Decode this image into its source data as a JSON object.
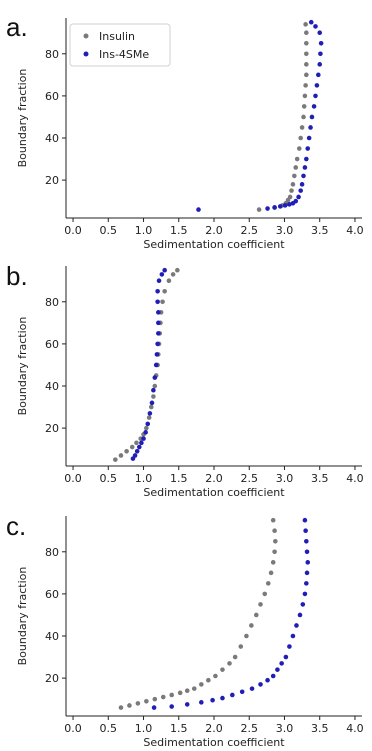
{
  "colors": {
    "insulin": "#7a7a7a",
    "ins_4sme": "#1f1fb8",
    "axis": "#222222"
  },
  "chart_data": [
    {
      "type": "scatter",
      "panel_label": "a.",
      "xlabel": "Sedimentation coefficient",
      "ylabel": "Boundary fraction",
      "xlim": [
        -0.1,
        4.1
      ],
      "ylim": [
        2,
        97
      ],
      "xticks": [
        "0.0",
        "0.5",
        "1.0",
        "1.5",
        "2.0",
        "2.5",
        "3.0",
        "3.5",
        "4.0"
      ],
      "yticks": [
        "20",
        "40",
        "60",
        "80"
      ],
      "grid": false,
      "legend": {
        "position": "top-left",
        "entries": [
          "Insulin",
          "Ins-4SMe"
        ]
      },
      "series": [
        {
          "name": "Insulin",
          "color": "#7a7a7a",
          "points": [
            [
              2.64,
              6.0
            ],
            [
              2.86,
              7.0
            ],
            [
              2.97,
              8.0
            ],
            [
              3.02,
              9.0
            ],
            [
              3.05,
              10.5
            ],
            [
              3.08,
              12
            ],
            [
              3.1,
              15
            ],
            [
              3.12,
              18
            ],
            [
              3.14,
              22
            ],
            [
              3.16,
              26
            ],
            [
              3.18,
              30
            ],
            [
              3.21,
              35
            ],
            [
              3.23,
              40
            ],
            [
              3.25,
              45
            ],
            [
              3.27,
              50
            ],
            [
              3.28,
              55
            ],
            [
              3.29,
              60
            ],
            [
              3.3,
              65
            ],
            [
              3.31,
              70
            ],
            [
              3.31,
              75
            ],
            [
              3.31,
              80
            ],
            [
              3.31,
              85
            ],
            [
              3.31,
              90
            ],
            [
              3.3,
              94
            ]
          ]
        },
        {
          "name": "Ins-4SMe",
          "color": "#1f1fb8",
          "points": [
            [
              1.78,
              6.0
            ],
            [
              2.76,
              6.5
            ],
            [
              2.86,
              7.0
            ],
            [
              2.94,
              7.5
            ],
            [
              3.01,
              8.0
            ],
            [
              3.07,
              8.5
            ],
            [
              3.12,
              9.0
            ],
            [
              3.16,
              10
            ],
            [
              3.2,
              12
            ],
            [
              3.23,
              15
            ],
            [
              3.25,
              18
            ],
            [
              3.27,
              22
            ],
            [
              3.29,
              26
            ],
            [
              3.31,
              30
            ],
            [
              3.33,
              35
            ],
            [
              3.35,
              40
            ],
            [
              3.37,
              45
            ],
            [
              3.39,
              50
            ],
            [
              3.42,
              55
            ],
            [
              3.44,
              60
            ],
            [
              3.46,
              65
            ],
            [
              3.48,
              70
            ],
            [
              3.5,
              75
            ],
            [
              3.51,
              80
            ],
            [
              3.52,
              85
            ],
            [
              3.5,
              90
            ],
            [
              3.44,
              93
            ],
            [
              3.38,
              95
            ]
          ]
        }
      ]
    },
    {
      "type": "scatter",
      "panel_label": "b.",
      "xlabel": "Sedimentation coefficient",
      "ylabel": "Boundary fraction",
      "xlim": [
        -0.1,
        4.1
      ],
      "ylim": [
        2,
        97
      ],
      "xticks": [
        "0.0",
        "0.5",
        "1.0",
        "1.5",
        "2.0",
        "2.5",
        "3.0",
        "3.5",
        "4.0"
      ],
      "yticks": [
        "20",
        "40",
        "60",
        "80"
      ],
      "grid": false,
      "series": [
        {
          "name": "Insulin",
          "color": "#7a7a7a",
          "points": [
            [
              0.6,
              5.0
            ],
            [
              0.68,
              7
            ],
            [
              0.76,
              9
            ],
            [
              0.84,
              11
            ],
            [
              0.9,
              13
            ],
            [
              0.96,
              15
            ],
            [
              1.0,
              17
            ],
            [
              1.04,
              20
            ],
            [
              1.08,
              25
            ],
            [
              1.11,
              30
            ],
            [
              1.14,
              35
            ],
            [
              1.16,
              40
            ],
            [
              1.18,
              45
            ],
            [
              1.2,
              50
            ],
            [
              1.21,
              55
            ],
            [
              1.22,
              60
            ],
            [
              1.23,
              65
            ],
            [
              1.24,
              70
            ],
            [
              1.25,
              75
            ],
            [
              1.27,
              80
            ],
            [
              1.3,
              85
            ],
            [
              1.36,
              90
            ],
            [
              1.42,
              93
            ],
            [
              1.48,
              95
            ]
          ]
        },
        {
          "name": "Ins-4SMe",
          "color": "#1f1fb8",
          "points": [
            [
              0.85,
              5.5
            ],
            [
              0.88,
              7
            ],
            [
              0.91,
              9
            ],
            [
              0.94,
              11
            ],
            [
              0.97,
              13
            ],
            [
              1.0,
              15
            ],
            [
              1.03,
              18
            ],
            [
              1.06,
              22
            ],
            [
              1.09,
              27
            ],
            [
              1.12,
              32
            ],
            [
              1.14,
              38
            ],
            [
              1.16,
              44
            ],
            [
              1.18,
              50
            ],
            [
              1.19,
              55
            ],
            [
              1.2,
              60
            ],
            [
              1.21,
              65
            ],
            [
              1.21,
              70
            ],
            [
              1.21,
              75
            ],
            [
              1.2,
              80
            ],
            [
              1.2,
              85
            ],
            [
              1.22,
              90
            ],
            [
              1.26,
              93
            ],
            [
              1.3,
              95
            ]
          ]
        }
      ]
    },
    {
      "type": "scatter",
      "panel_label": "c.",
      "xlabel": "Sedimentation coefficient",
      "ylabel": "Boundary fraction",
      "xlim": [
        -0.1,
        4.1
      ],
      "ylim": [
        2,
        97
      ],
      "xticks": [
        "0.0",
        "0.5",
        "1.0",
        "1.5",
        "2.0",
        "2.5",
        "3.0",
        "3.5",
        "4.0"
      ],
      "yticks": [
        "20",
        "40",
        "60",
        "80"
      ],
      "grid": false,
      "series": [
        {
          "name": "Insulin",
          "color": "#7a7a7a",
          "points": [
            [
              0.68,
              6
            ],
            [
              0.8,
              7
            ],
            [
              0.92,
              8
            ],
            [
              1.04,
              9
            ],
            [
              1.16,
              10
            ],
            [
              1.28,
              11
            ],
            [
              1.4,
              12
            ],
            [
              1.52,
              13
            ],
            [
              1.62,
              14
            ],
            [
              1.72,
              15
            ],
            [
              1.82,
              17
            ],
            [
              1.92,
              19
            ],
            [
              2.02,
              21
            ],
            [
              2.12,
              24
            ],
            [
              2.22,
              27
            ],
            [
              2.3,
              30
            ],
            [
              2.38,
              35
            ],
            [
              2.46,
              40
            ],
            [
              2.53,
              45
            ],
            [
              2.6,
              50
            ],
            [
              2.66,
              55
            ],
            [
              2.72,
              60
            ],
            [
              2.77,
              65
            ],
            [
              2.81,
              70
            ],
            [
              2.84,
              75
            ],
            [
              2.86,
              80
            ],
            [
              2.87,
              85
            ],
            [
              2.86,
              90
            ],
            [
              2.84,
              95
            ]
          ]
        },
        {
          "name": "Ins-4SMe",
          "color": "#1f1fb8",
          "points": [
            [
              1.15,
              6
            ],
            [
              1.4,
              6.5
            ],
            [
              1.62,
              7.5
            ],
            [
              1.82,
              8.5
            ],
            [
              1.98,
              9.5
            ],
            [
              2.12,
              10.5
            ],
            [
              2.26,
              12
            ],
            [
              2.4,
              13.5
            ],
            [
              2.54,
              15
            ],
            [
              2.66,
              17
            ],
            [
              2.76,
              19
            ],
            [
              2.84,
              21
            ],
            [
              2.9,
              24
            ],
            [
              2.96,
              27
            ],
            [
              3.02,
              30
            ],
            [
              3.07,
              35
            ],
            [
              3.12,
              40
            ],
            [
              3.17,
              45
            ],
            [
              3.22,
              50
            ],
            [
              3.26,
              55
            ],
            [
              3.29,
              60
            ],
            [
              3.31,
              65
            ],
            [
              3.32,
              70
            ],
            [
              3.33,
              75
            ],
            [
              3.32,
              80
            ],
            [
              3.31,
              85
            ],
            [
              3.3,
              90
            ],
            [
              3.29,
              95
            ]
          ]
        }
      ]
    }
  ]
}
